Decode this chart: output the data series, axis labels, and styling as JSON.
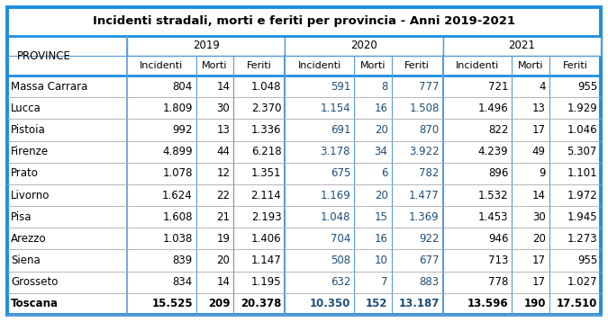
{
  "title": "Incidenti stradali, morti e feriti per provincia - Anni 2019-2021",
  "year_headers": [
    "2019",
    "2020",
    "2021"
  ],
  "sub_headers": [
    "Incidenti",
    "Morti",
    "Feriti"
  ],
  "province_header": "PROVINCE",
  "provinces": [
    "Massa Carrara",
    "Lucca",
    "Pistoia",
    "Firenze",
    "Prato",
    "Livorno",
    "Pisa",
    "Arezzo",
    "Siena",
    "Grosseto",
    "Toscana"
  ],
  "data": [
    [
      "804",
      "14",
      "1.048",
      "591",
      "8",
      "777",
      "721",
      "4",
      "955"
    ],
    [
      "1.809",
      "30",
      "2.370",
      "1.154",
      "16",
      "1.508",
      "1.496",
      "13",
      "1.929"
    ],
    [
      "992",
      "13",
      "1.336",
      "691",
      "20",
      "870",
      "822",
      "17",
      "1.046"
    ],
    [
      "4.899",
      "44",
      "6.218",
      "3.178",
      "34",
      "3.922",
      "4.239",
      "49",
      "5.307"
    ],
    [
      "1.078",
      "12",
      "1.351",
      "675",
      "6",
      "782",
      "896",
      "9",
      "1.101"
    ],
    [
      "1.624",
      "22",
      "2.114",
      "1.169",
      "20",
      "1.477",
      "1.532",
      "14",
      "1.972"
    ],
    [
      "1.608",
      "21",
      "2.193",
      "1.048",
      "15",
      "1.369",
      "1.453",
      "30",
      "1.945"
    ],
    [
      "1.038",
      "19",
      "1.406",
      "704",
      "16",
      "922",
      "946",
      "20",
      "1.273"
    ],
    [
      "839",
      "20",
      "1.147",
      "508",
      "10",
      "677",
      "713",
      "17",
      "955"
    ],
    [
      "834",
      "14",
      "1.195",
      "632",
      "7",
      "883",
      "778",
      "17",
      "1.027"
    ],
    [
      "15.525",
      "209",
      "20.378",
      "10.350",
      "152",
      "13.187",
      "13.596",
      "190",
      "17.510"
    ]
  ],
  "outer_border_color": "#1b8fde",
  "inner_border_color": "#5b9bd5",
  "row_separator_color": "#aaaaaa",
  "text_color_normal": "#000000",
  "text_color_blue": "#1f4e79",
  "title_fontsize": 9.5,
  "header_fontsize": 8.5,
  "cell_fontsize": 8.5
}
